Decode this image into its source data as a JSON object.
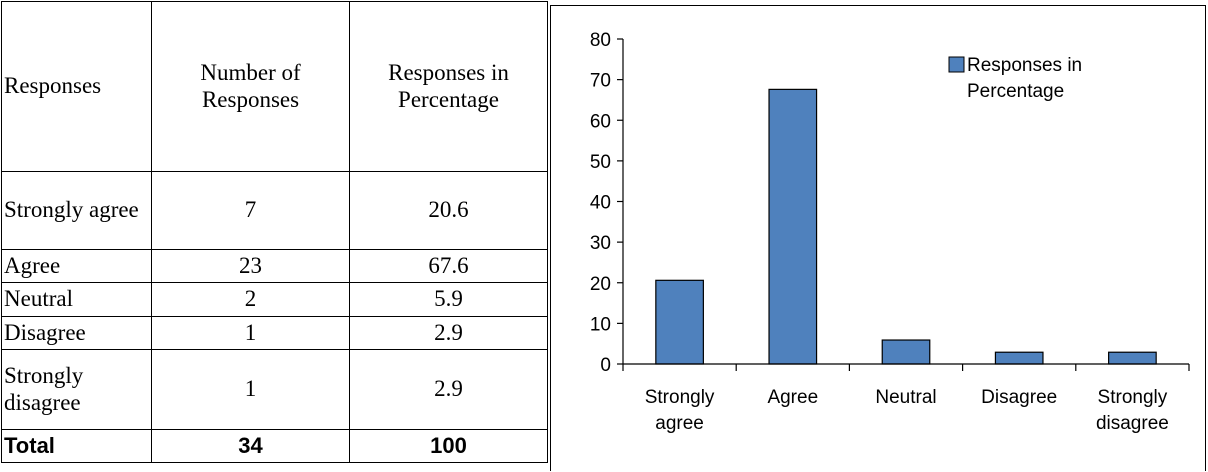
{
  "table": {
    "headers": [
      "Responses",
      "Number of Responses",
      "Responses in Percentage"
    ],
    "rows": [
      {
        "response": "Strongly agree",
        "count": "7",
        "percent": "20.6"
      },
      {
        "response": "Agree",
        "count": "23",
        "percent": "67.6"
      },
      {
        "response": "Neutral",
        "count": "2",
        "percent": "5.9"
      },
      {
        "response": "Disagree",
        "count": "1",
        "percent": "2.9"
      },
      {
        "response": "Strongly disagree",
        "count": "1",
        "percent": "2.9"
      }
    ],
    "total": {
      "label": "Total",
      "count": "34",
      "percent": "100"
    }
  },
  "chart_data": {
    "type": "bar",
    "categories": [
      "Strongly agree",
      "Agree",
      "Neutral",
      "Disagree",
      "Strongly disagree"
    ],
    "series": [
      {
        "name": "Responses in Percentage",
        "values": [
          20.6,
          67.6,
          5.9,
          2.9,
          2.9
        ],
        "color": "#4F81BD"
      }
    ],
    "ylim": [
      0,
      80
    ],
    "yticks": [
      0,
      10,
      20,
      30,
      40,
      50,
      60,
      70,
      80
    ],
    "grid": false,
    "legend": "top-right",
    "title": "",
    "xlabel": "",
    "ylabel": ""
  }
}
